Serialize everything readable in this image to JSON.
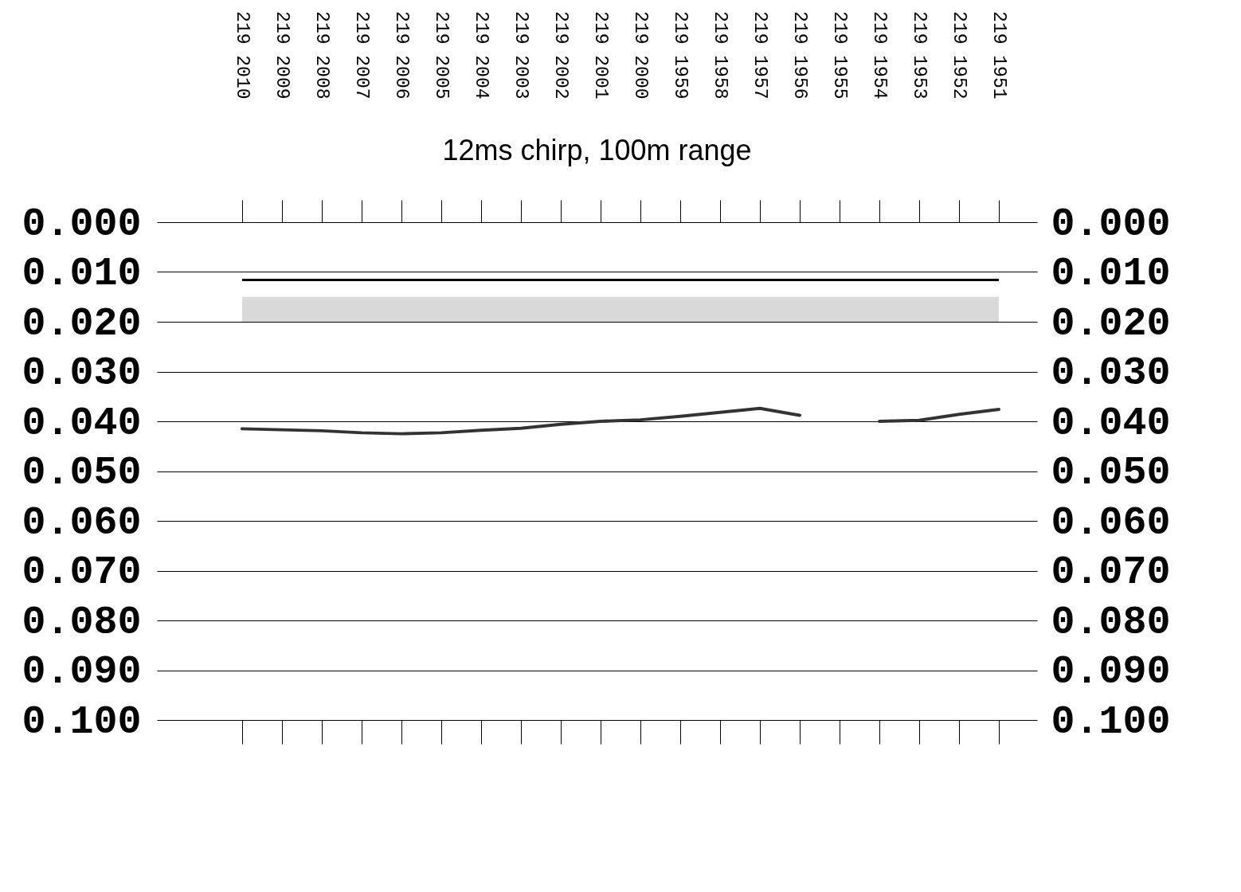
{
  "chart_data": {
    "type": "line",
    "title": "12ms chirp, 100m range",
    "categories": [
      "219 2010",
      "219 2009",
      "219 2008",
      "219 2007",
      "219 2006",
      "219 2005",
      "219 2004",
      "219 2003",
      "219 2002",
      "219 2001",
      "219 2000",
      "219 1959",
      "219 1958",
      "219 1957",
      "219 1956",
      "219 1955",
      "219 1954",
      "219 1953",
      "219 1952",
      "219 1951"
    ],
    "series": [
      {
        "color": "#333333",
        "values": [
          0.0415,
          0.0417,
          0.0419,
          0.0423,
          0.0425,
          0.0423,
          0.0418,
          0.0414,
          0.0406,
          0.04,
          0.0397,
          0.039,
          0.0382,
          0.0374,
          0.0388,
          null,
          0.04,
          0.0398,
          0.0386,
          0.0376
        ]
      }
    ],
    "ylim": [
      0.1,
      0
    ],
    "yticks": [
      {
        "value": 0,
        "label": "0.000"
      },
      {
        "value": 0.01,
        "label": "0.010"
      },
      {
        "value": 0.02,
        "label": "0.020"
      },
      {
        "value": 0.03,
        "label": "0.030"
      },
      {
        "value": 0.04,
        "label": "0.040"
      },
      {
        "value": 0.05,
        "label": "0.050"
      },
      {
        "value": 0.06,
        "label": "0.060"
      },
      {
        "value": 0.07,
        "label": "0.070"
      },
      {
        "value": 0.08,
        "label": "0.080"
      },
      {
        "value": 0.09,
        "label": "0.090"
      },
      {
        "value": 0.1,
        "label": "0.100"
      }
    ],
    "y2lim": [
      0.1,
      0
    ],
    "y2ticks": [
      {
        "value": 0,
        "label": "0.000"
      },
      {
        "value": 0.01,
        "label": "0.010"
      },
      {
        "value": 0.02,
        "label": "0.020"
      },
      {
        "value": 0.03,
        "label": "0.030"
      },
      {
        "value": 0.04,
        "label": "0.040"
      },
      {
        "value": 0.05,
        "label": "0.050"
      },
      {
        "value": 0.06,
        "label": "0.060"
      },
      {
        "value": 0.07,
        "label": "0.070"
      },
      {
        "value": 0.08,
        "label": "0.080"
      },
      {
        "value": 0.09,
        "label": "0.090"
      },
      {
        "value": 0.1,
        "label": "0.100"
      }
    ],
    "grid": "y",
    "marker": "none",
    "ref_lines": [
      {
        "axis": "y",
        "value": 0.0116,
        "color": "#000000"
      }
    ],
    "bands": [
      {
        "axis": "y",
        "from": 0.015,
        "to": 0.02,
        "color": "#d9d9d9"
      }
    ]
  }
}
